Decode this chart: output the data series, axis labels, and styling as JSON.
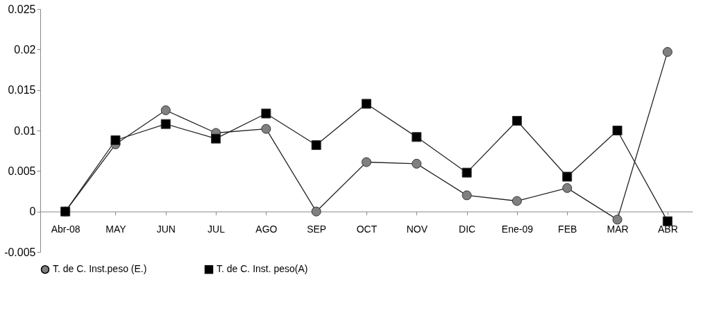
{
  "chart_data": {
    "type": "line",
    "categories": [
      "Abr-08",
      "MAY",
      "JUN",
      "JUL",
      "AGO",
      "SEP",
      "OCT",
      "NOV",
      "DIC",
      "Ene-09",
      "FEB",
      "MAR",
      "ABR"
    ],
    "series": [
      {
        "name": "T. de C. Inst.peso (E.)",
        "color": "#808080",
        "marker": "circle",
        "values": [
          0,
          0.0083,
          0.0125,
          0.0097,
          0.0102,
          0,
          0.0061,
          0.0059,
          0.002,
          0.0013,
          0.0029,
          -0.001,
          0.0197
        ]
      },
      {
        "name": "T. de C. Inst. peso(A)",
        "color": "#000000",
        "marker": "square",
        "values": [
          0,
          0.0088,
          0.0108,
          0.009,
          0.0121,
          0.0082,
          0.0133,
          0.0092,
          0.0048,
          0.0112,
          0.0043,
          0.01,
          -0.0012
        ]
      }
    ],
    "ylim": [
      -0.005,
      0.025
    ],
    "yticks": [
      -0.005,
      0,
      0.005,
      0.01,
      0.015,
      0.02,
      0.025
    ],
    "grid": false,
    "legend": "bottom",
    "line_style": "solid"
  }
}
